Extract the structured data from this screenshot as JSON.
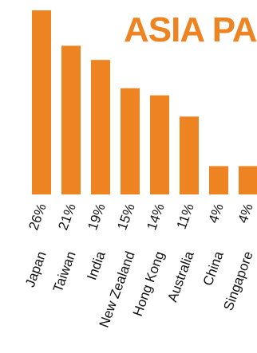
{
  "colors": {
    "bar": "#EE8421",
    "title": "#EE8421",
    "text": "#111111",
    "background": "#ffffff"
  },
  "chart_data": {
    "type": "bar",
    "title": "ASIA PAC",
    "categories": [
      "Japan",
      "Taiwan",
      "India",
      "New Zealand",
      "Hong Kong",
      "Australia",
      "China",
      "Singapore"
    ],
    "values": [
      26,
      21,
      19,
      15,
      14,
      11,
      4,
      4
    ],
    "value_labels": [
      "26%",
      "21%",
      "19%",
      "15%",
      "14%",
      "11%",
      "4%",
      "4%"
    ],
    "ylim": [
      0,
      26
    ],
    "legend": "none",
    "grid": false,
    "xlabel": "",
    "ylabel": ""
  }
}
